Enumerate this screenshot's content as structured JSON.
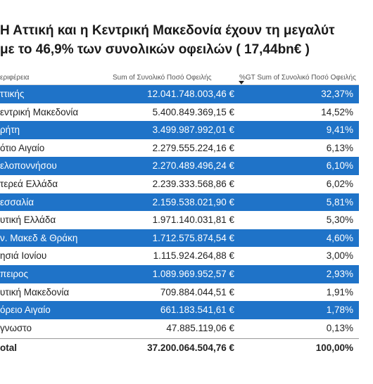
{
  "headline": {
    "line1": "Η Αττική και η Κεντρική Μακεδονία  έχουν τη μεγαλύτ",
    "line2": "με το 46,9% των συνολικών οφειλών ( 17,44bn€ )"
  },
  "table": {
    "columns": [
      "εριφέρεια",
      "Sum of Συνολικό Ποσό Οφειλής",
      "%GT Sum of Συνολικό Ποσό Οφειλής"
    ],
    "rows": [
      {
        "region": "ττικής",
        "sum": "12.041.748.003,46 €",
        "pct": "32,37%"
      },
      {
        "region": "εντρική Μακεδονία",
        "sum": "5.400.849.369,15 €",
        "pct": "14,52%"
      },
      {
        "region": "ρήτη",
        "sum": "3.499.987.992,01 €",
        "pct": "9,41%"
      },
      {
        "region": "ότιο Αιγαίο",
        "sum": "2.279.555.224,16 €",
        "pct": "6,13%"
      },
      {
        "region": "ελοποννήσου",
        "sum": "2.270.489.496,24 €",
        "pct": "6,10%"
      },
      {
        "region": "τερεά Ελλάδα",
        "sum": "2.239.333.568,86 €",
        "pct": "6,02%"
      },
      {
        "region": "εσσαλία",
        "sum": "2.159.538.021,90 €",
        "pct": "5,81%"
      },
      {
        "region": "υτική Ελλάδα",
        "sum": "1.971.140.031,81 €",
        "pct": "5,30%"
      },
      {
        "region": "ν. Μακεδ & Θράκη",
        "sum": "1.712.575.874,54 €",
        "pct": "4,60%"
      },
      {
        "region": "ησιά Ιονίου",
        "sum": "1.115.924.264,88 €",
        "pct": "3,00%"
      },
      {
        "region": "πειρος",
        "sum": "1.089.969.952,57 €",
        "pct": "2,93%"
      },
      {
        "region": "υτική Μακεδονία",
        "sum": "709.884.044,51 €",
        "pct": "1,91%"
      },
      {
        "region": "όρειο Αιγαίο",
        "sum": "661.183.541,61 €",
        "pct": "1,78%"
      },
      {
        "region": "γνωστο",
        "sum": "47.885.119,06 €",
        "pct": "0,13%"
      }
    ],
    "total": {
      "label": "otal",
      "sum": "37.200.064.504,76 €",
      "pct": "100,00%"
    },
    "highlight_color": "#1f73c8"
  }
}
